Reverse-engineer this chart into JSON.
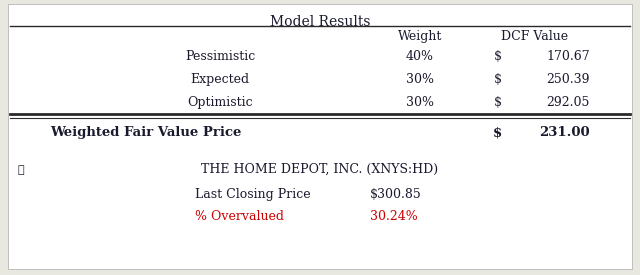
{
  "title": "Model Results",
  "rows": [
    {
      "label": "Pessimistic",
      "weight": "40%",
      "dollar": "$",
      "value": "170.67"
    },
    {
      "label": "Expected",
      "weight": "30%",
      "dollar": "$",
      "value": "250.39"
    },
    {
      "label": "Optimistic",
      "weight": "30%",
      "dollar": "$",
      "value": "292.05"
    }
  ],
  "weighted_label": "Weighted Fair Value Price",
  "weighted_dollar": "$",
  "weighted_value": "231.00",
  "company_name": "THE HOME DEPOT, INC. (XNYS:HD)",
  "last_closing_label": "Last Closing Price",
  "last_closing_value": "$300.85",
  "overvalued_label": "% Overvalued",
  "overvalued_value": "30.24%",
  "bg_color": "#ffffff",
  "outer_bg": "#e8e8e0",
  "text_color": "#1a1a2e",
  "red_color": "#cc0000",
  "line_color": "#2a2a2a",
  "font_family": "serif",
  "title_fontsize": 10,
  "body_fontsize": 9,
  "bold_fontsize": 9.5
}
